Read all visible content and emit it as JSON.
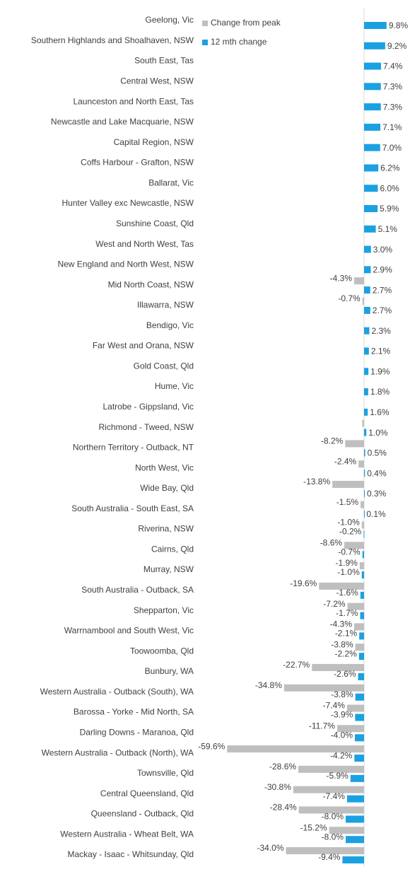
{
  "chart_data": {
    "type": "hbar",
    "categories": [
      "Geelong, Vic",
      "Southern Highlands and Shoalhaven, NSW",
      "South East, Tas",
      "Central West, NSW",
      "Launceston and North East, Tas",
      "Newcastle and Lake Macquarie, NSW",
      "Capital Region, NSW",
      "Coffs Harbour - Grafton, NSW",
      "Ballarat, Vic",
      "Hunter Valley exc Newcastle, NSW",
      "Sunshine Coast, Qld",
      "West and North West, Tas",
      "New England and North West, NSW",
      "Mid North Coast, NSW",
      "Illawarra, NSW",
      "Bendigo, Vic",
      "Far West and Orana, NSW",
      "Gold Coast, Qld",
      "Hume, Vic",
      "Latrobe - Gippsland, Vic",
      "Richmond - Tweed, NSW",
      "Northern Territory - Outback, NT",
      "North West, Vic",
      "Wide Bay, Qld",
      "South Australia - South East, SA",
      "Riverina, NSW",
      "Cairns, Qld",
      "Murray, NSW",
      "South Australia - Outback, SA",
      "Shepparton, Vic",
      "Warrnambool and South West, Vic",
      "Toowoomba, Qld",
      "Bunbury, WA",
      "Western Australia - Outback (South), WA",
      "Barossa - Yorke - Mid North, SA",
      "Darling Downs - Maranoa, Qld",
      "Western Australia - Outback (North), WA",
      "Townsville, Qld",
      "Central Queensland, Qld",
      "Queensland - Outback, Qld",
      "Western Australia - Wheat Belt, WA",
      "Mackay - Isaac - Whitsunday, Qld"
    ],
    "series": [
      {
        "name": "Change from peak",
        "color": "#bfbfbf",
        "values": [
          null,
          null,
          null,
          null,
          null,
          null,
          null,
          null,
          null,
          null,
          null,
          null,
          null,
          -4.3,
          -0.7,
          null,
          null,
          null,
          null,
          null,
          -0.8,
          -8.2,
          -2.4,
          -13.8,
          -1.5,
          -1.0,
          -8.6,
          -1.9,
          -19.6,
          -7.2,
          -4.3,
          -3.8,
          -22.7,
          -34.8,
          -7.4,
          -11.7,
          -59.6,
          -28.6,
          -30.8,
          -28.4,
          -15.2,
          -34.0
        ],
        "value_labels": [
          null,
          null,
          null,
          null,
          null,
          null,
          null,
          null,
          null,
          null,
          null,
          null,
          null,
          "-4.3%",
          "-0.7%",
          null,
          null,
          null,
          null,
          null,
          null,
          "-8.2%",
          "-2.4%",
          "-13.8%",
          "-1.5%",
          "-1.0%",
          "-8.6%",
          "-1.9%",
          "-19.6%",
          "-7.2%",
          "-4.3%",
          "-3.8%",
          "-22.7%",
          "-34.8%",
          "-7.4%",
          "-11.7%",
          "-59.6%",
          "-28.6%",
          "-30.8%",
          "-28.4%",
          "-15.2%",
          "-34.0%"
        ]
      },
      {
        "name": "12 mth change",
        "color": "#1ba1e2",
        "values": [
          9.8,
          9.2,
          7.4,
          7.3,
          7.3,
          7.1,
          7.0,
          6.2,
          6.0,
          5.9,
          5.1,
          3.0,
          2.9,
          2.7,
          2.7,
          2.3,
          2.1,
          1.9,
          1.8,
          1.6,
          1.0,
          0.5,
          0.4,
          0.3,
          0.1,
          -0.2,
          -0.7,
          -1.0,
          -1.6,
          -1.7,
          -2.1,
          -2.2,
          -2.6,
          -3.8,
          -3.9,
          -4.0,
          -4.2,
          -5.9,
          -7.4,
          -8.0,
          -8.0,
          -9.4
        ],
        "value_labels": [
          "9.8%",
          "9.2%",
          "7.4%",
          "7.3%",
          "7.3%",
          "7.1%",
          "7.0%",
          "6.2%",
          "6.0%",
          "5.9%",
          "5.1%",
          "3.0%",
          "2.9%",
          "2.7%",
          "2.7%",
          "2.3%",
          "2.1%",
          "1.9%",
          "1.8%",
          "1.6%",
          "1.0%",
          "0.5%",
          "0.4%",
          "0.3%",
          "0.1%",
          "-0.2%",
          "-0.7%",
          "-1.0%",
          "-1.6%",
          "-1.7%",
          "-2.1%",
          "-2.2%",
          "-2.6%",
          "-3.8%",
          "-3.9%",
          "-4.0%",
          "-4.2%",
          "-5.9%",
          "-7.4%",
          "-8.0%",
          "-8.0%",
          "-9.4%"
        ]
      }
    ],
    "xlim": [
      -60,
      20
    ],
    "legend": "top"
  }
}
